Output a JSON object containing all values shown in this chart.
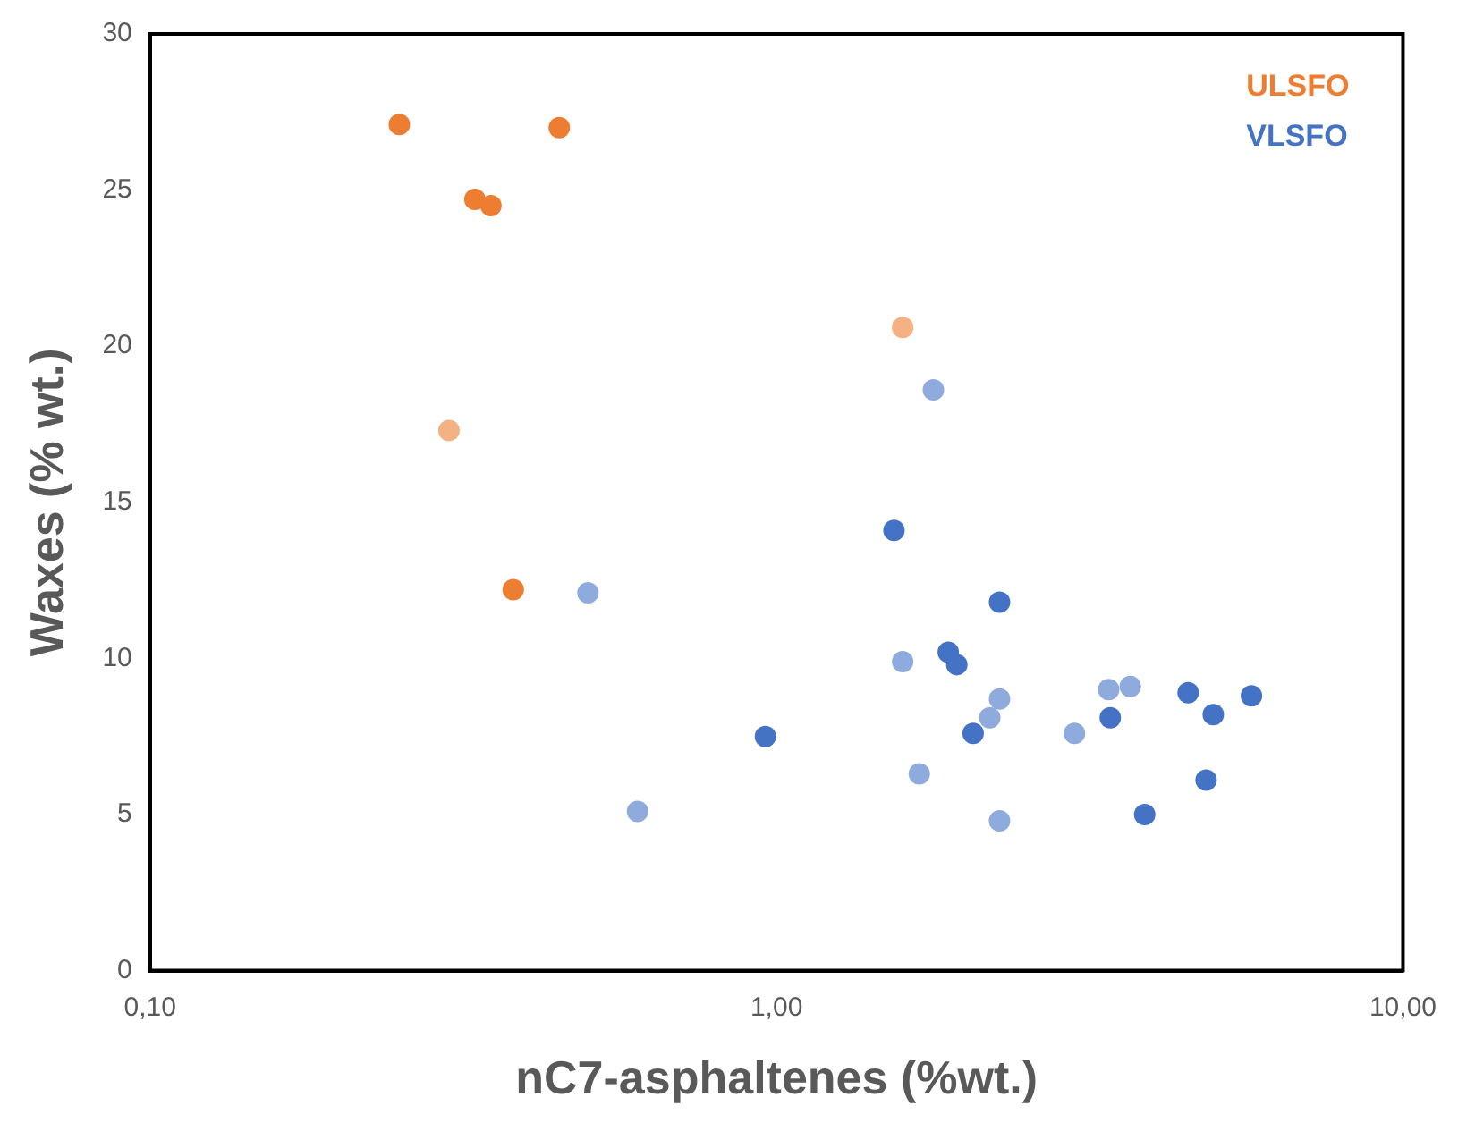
{
  "chart_data": {
    "type": "scatter",
    "xlabel": "nC7-asphaltenes (%wt.)",
    "ylabel": "Waxes (% wt.)",
    "log": "x",
    "xlim": [
      0.1,
      10
    ],
    "xticks": [
      {
        "value": 0.1,
        "label": "0,10"
      },
      {
        "value": 1,
        "label": "1,00"
      },
      {
        "value": 10,
        "label": "10,00"
      }
    ],
    "ylim": [
      0,
      30
    ],
    "yticks": [
      0,
      5,
      10,
      15,
      20,
      25,
      30
    ],
    "grid": false,
    "legend": "top right",
    "marker": "circle",
    "series": [
      {
        "name": "ULSFO",
        "color": "#ed7d31",
        "x": [
          0.25,
          0.45,
          0.33,
          0.35,
          0.38
        ],
        "values": [
          27.1,
          27.0,
          24.7,
          24.5,
          12.2
        ]
      },
      {
        "color": "#f4b183",
        "x": [
          0.3,
          1.59
        ],
        "values": [
          17.3,
          20.6
        ]
      },
      {
        "name": "VLSFO",
        "color": "#4472c4",
        "x": [
          0.96,
          1.54,
          2.27,
          1.88,
          1.94,
          2.06,
          3.41,
          4.54,
          4.98,
          4.85,
          3.87,
          5.73
        ],
        "values": [
          7.5,
          14.1,
          11.8,
          10.2,
          9.8,
          7.6,
          8.1,
          8.9,
          8.2,
          6.1,
          5.0,
          8.8
        ]
      },
      {
        "color": "#8faadc",
        "x": [
          0.5,
          0.6,
          1.78,
          1.59,
          1.69,
          2.27,
          2.19,
          2.27,
          2.99,
          3.39,
          3.67
        ],
        "values": [
          12.1,
          5.1,
          18.6,
          9.9,
          6.3,
          8.7,
          8.1,
          4.8,
          7.6,
          9.0,
          9.1
        ]
      }
    ]
  }
}
